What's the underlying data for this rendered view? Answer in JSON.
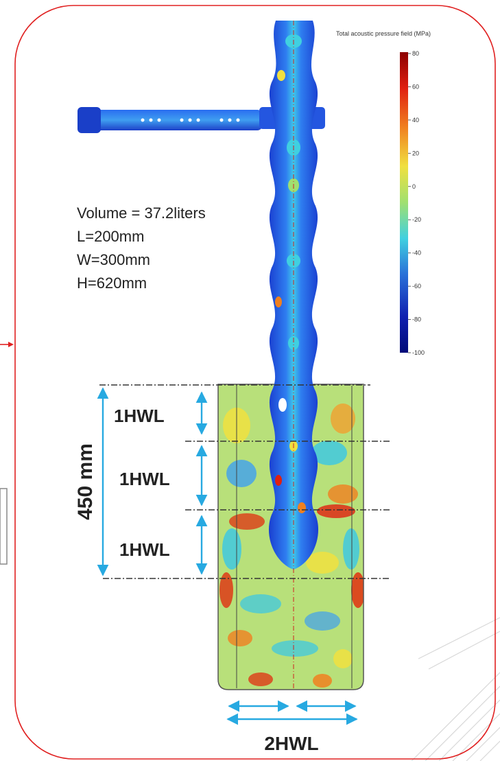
{
  "colorbar": {
    "title": "Total acoustic pressure field  (MPa)",
    "min": -100,
    "max": 80,
    "ticks": [
      "80",
      "60",
      "40",
      "20",
      "0",
      "-20",
      "-40",
      "-60",
      "-80",
      "-100"
    ],
    "colors": [
      "#8b0000",
      "#e02010",
      "#f08020",
      "#f0e040",
      "#a0e070",
      "#40d0e0",
      "#2a70d8",
      "#1020b0",
      "#000a78"
    ]
  },
  "specs": {
    "volume": "Volume = 37.2liters",
    "length": "L=200mm",
    "width": "W=300mm",
    "height": "H=620mm"
  },
  "dimensions": {
    "total_depth": "450 mm",
    "segments": [
      "1HWL",
      "1HWL",
      "1HWL"
    ],
    "tank_width": "2HWL"
  },
  "colors": {
    "frame": "#e02020",
    "arrow": "#27a9e1",
    "tank_fill": "#b8e07a",
    "horn": "#2c5ee6",
    "text": "#222222"
  }
}
